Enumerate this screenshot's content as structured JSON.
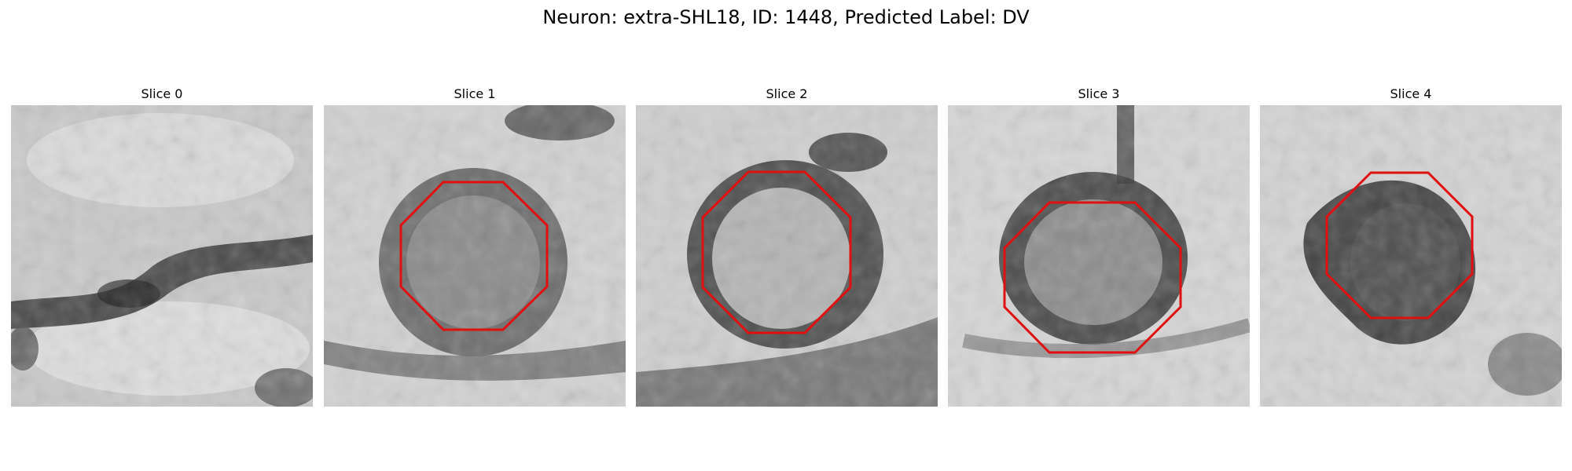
{
  "figure": {
    "title": "Neuron: extra-SHL18, ID: 1448, Predicted Label: DV",
    "outline_color": "#e01010"
  },
  "panels": [
    {
      "title": "Slice 0",
      "has_outline": false
    },
    {
      "title": "Slice 1",
      "has_outline": true
    },
    {
      "title": "Slice 2",
      "has_outline": true
    },
    {
      "title": "Slice 3",
      "has_outline": true
    },
    {
      "title": "Slice 4",
      "has_outline": true
    }
  ]
}
